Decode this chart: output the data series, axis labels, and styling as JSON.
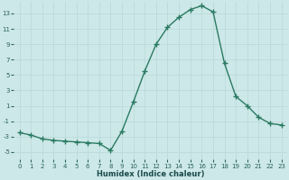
{
  "x": [
    0,
    1,
    2,
    3,
    4,
    5,
    6,
    7,
    8,
    9,
    10,
    11,
    12,
    13,
    14,
    15,
    16,
    17,
    18,
    19,
    20,
    21,
    22,
    23
  ],
  "y": [
    -2.5,
    -2.8,
    -3.3,
    -3.5,
    -3.6,
    -3.7,
    -3.8,
    -3.9,
    -4.8,
    -2.3,
    1.5,
    5.5,
    9.0,
    11.2,
    12.5,
    13.5,
    14.0,
    13.2,
    6.5,
    2.2,
    1.0,
    -0.5,
    -1.3,
    -1.5
  ],
  "line_color": "#2a7a62",
  "marker": "+",
  "marker_size": 4,
  "marker_lw": 1.0,
  "line_width": 1.0,
  "bg_color": "#cde8e8",
  "grid_color": "#b8d8d8",
  "tick_color": "#2a5f5f",
  "label_color": "#1a4a4a",
  "xlabel": "Humidex (Indice chaleur)",
  "xlim": [
    -0.5,
    23.5
  ],
  "ylim": [
    -6,
    14.5
  ],
  "yticks": [
    -5,
    -3,
    -1,
    1,
    3,
    5,
    7,
    9,
    11,
    13
  ],
  "xticks": [
    0,
    1,
    2,
    3,
    4,
    5,
    6,
    7,
    8,
    9,
    10,
    11,
    12,
    13,
    14,
    15,
    16,
    17,
    18,
    19,
    20,
    21,
    22,
    23
  ],
  "xlabel_fontsize": 6.0,
  "tick_fontsize": 5.0
}
